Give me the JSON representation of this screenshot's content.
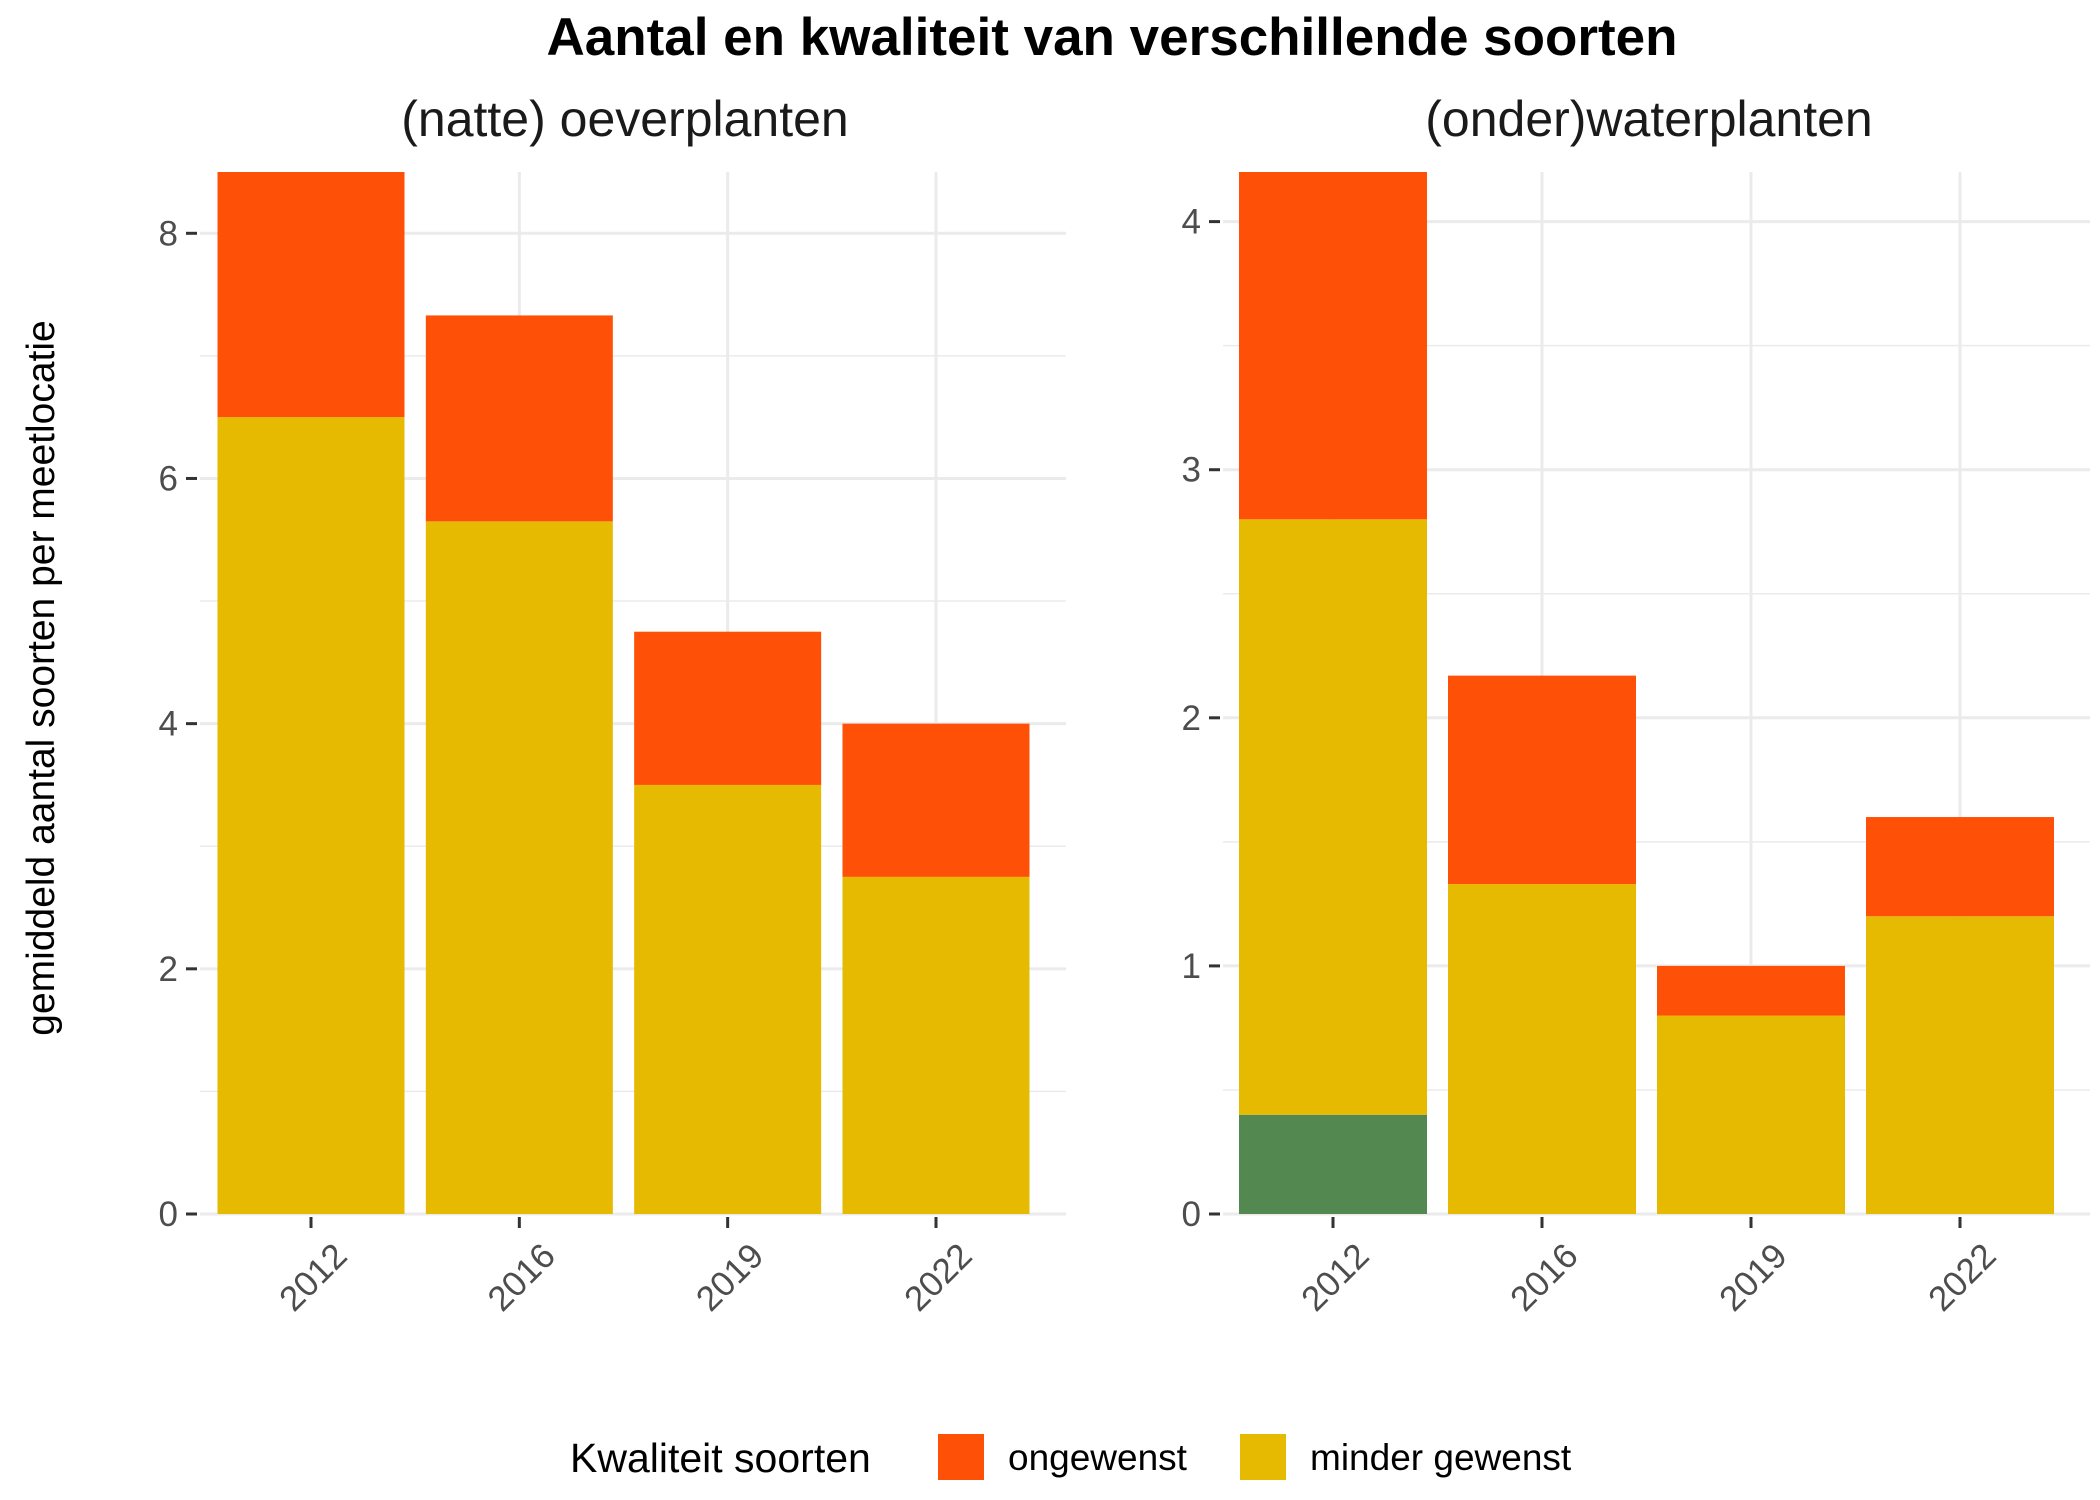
{
  "chart_data": {
    "type": "bar",
    "stacked": true,
    "title": "Aantal en kwaliteit van verschillende soorten",
    "ylabel": "gemiddeld aantal soorten per meetlocatie",
    "categories": [
      "2012",
      "2016",
      "2019",
      "2022"
    ],
    "legend": {
      "title": "Kwaliteit soorten",
      "position": "bottom",
      "entries": [
        {
          "label": "ongewenst",
          "color": "#FF5008"
        },
        {
          "label": "minder gewenst",
          "color": "#E6BA00"
        }
      ]
    },
    "colors": {
      "gewenst": "#548851",
      "minder_gewenst": "#E6BA00",
      "ongewenst": "#FF5008"
    },
    "panels": [
      {
        "title": "(natte) oeverplanten",
        "ylim": [
          0,
          8.5
        ],
        "yticks": [
          0,
          2,
          4,
          6,
          8
        ],
        "series": [
          {
            "key": "gewenst",
            "values": [
              0,
              0,
              0,
              0
            ]
          },
          {
            "key": "minder_gewenst",
            "values": [
              6.5,
              5.65,
              3.5,
              2.75
            ]
          },
          {
            "key": "ongewenst",
            "values": [
              2.0,
              1.68,
              1.25,
              1.25
            ]
          }
        ]
      },
      {
        "title": "(onder)waterplanten",
        "ylim": [
          0,
          4.2
        ],
        "yticks": [
          0,
          1,
          2,
          3,
          4
        ],
        "series": [
          {
            "key": "gewenst",
            "values": [
              0.4,
              0,
              0,
              0
            ]
          },
          {
            "key": "minder_gewenst",
            "values": [
              2.4,
              1.33,
              0.8,
              1.2
            ]
          },
          {
            "key": "ongewenst",
            "values": [
              1.4,
              0.84,
              0.2,
              0.4
            ]
          }
        ]
      }
    ]
  }
}
